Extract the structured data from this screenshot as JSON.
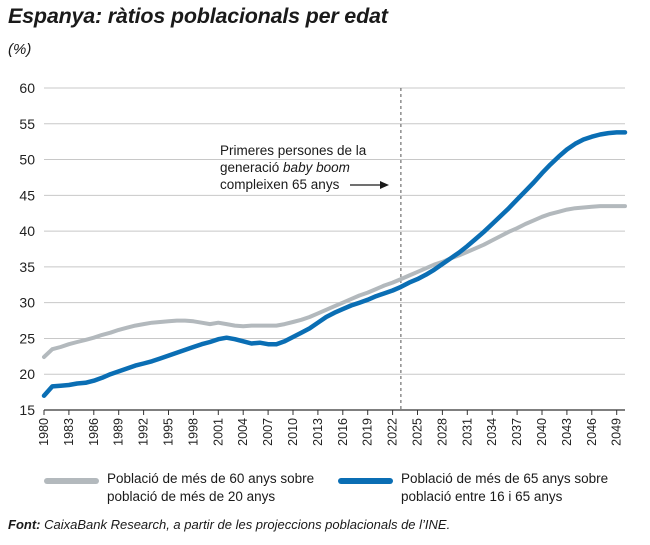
{
  "title": "Espanya: ràtios poblacionals per edat",
  "unit": "(%)",
  "annotation": {
    "line1": "Primeres persones de la",
    "line2_pre": "generació ",
    "line2_italic": "baby boom",
    "line3": "compleixen 65 anys",
    "marker_year": 2023
  },
  "legend": [
    {
      "line1": "Població de més de 60 anys sobre",
      "line2": "població de més de 20 anys",
      "color": "#b3b9bd"
    },
    {
      "line1": "Població de més de 65 anys sobre",
      "line2": "població entre 16 i 65 anys",
      "color": "#0a6eb4"
    }
  ],
  "source": {
    "label": "Font:",
    "text": " CaixaBank Research, a partir de les projeccions poblacionals de l’INE."
  },
  "chart_data": {
    "type": "line",
    "y_ticks": [
      15,
      20,
      25,
      30,
      35,
      40,
      45,
      50,
      55,
      60
    ],
    "ylim": [
      15,
      60
    ],
    "x_ticks": [
      1980,
      1983,
      1986,
      1989,
      1992,
      1995,
      1998,
      2001,
      2004,
      2007,
      2010,
      2013,
      2016,
      2019,
      2022,
      2025,
      2028,
      2031,
      2034,
      2037,
      2040,
      2043,
      2046,
      2049
    ],
    "xlim": [
      1980,
      2050
    ],
    "grid": true,
    "legend_position": "bottom",
    "series": [
      {
        "name": "Població de més de 60 anys sobre població de més de 20 anys",
        "color": "#b3b9bd",
        "x": [
          1980,
          1981,
          1982,
          1983,
          1984,
          1985,
          1986,
          1987,
          1988,
          1989,
          1990,
          1991,
          1992,
          1993,
          1994,
          1995,
          1996,
          1997,
          1998,
          1999,
          2000,
          2001,
          2002,
          2003,
          2004,
          2005,
          2006,
          2007,
          2008,
          2009,
          2010,
          2011,
          2012,
          2013,
          2014,
          2015,
          2016,
          2017,
          2018,
          2019,
          2020,
          2021,
          2022,
          2023,
          2024,
          2025,
          2026,
          2027,
          2028,
          2029,
          2030,
          2031,
          2032,
          2033,
          2034,
          2035,
          2036,
          2037,
          2038,
          2039,
          2040,
          2041,
          2042,
          2043,
          2044,
          2045,
          2046,
          2047,
          2048,
          2049,
          2050
        ],
        "values": [
          22.4,
          23.5,
          23.8,
          24.2,
          24.5,
          24.8,
          25.1,
          25.5,
          25.8,
          26.2,
          26.5,
          26.8,
          27.0,
          27.2,
          27.3,
          27.4,
          27.5,
          27.5,
          27.4,
          27.2,
          27.0,
          27.2,
          27.0,
          26.8,
          26.7,
          26.8,
          26.8,
          26.8,
          26.8,
          27.0,
          27.3,
          27.6,
          28.0,
          28.5,
          29.0,
          29.5,
          30.0,
          30.5,
          31.0,
          31.4,
          31.9,
          32.4,
          32.8,
          33.3,
          33.8,
          34.3,
          34.8,
          35.3,
          35.7,
          36.2,
          36.6,
          37.1,
          37.6,
          38.1,
          38.7,
          39.3,
          39.9,
          40.4,
          41.0,
          41.5,
          42.0,
          42.4,
          42.7,
          43.0,
          43.2,
          43.3,
          43.4,
          43.5,
          43.5,
          43.5,
          43.5
        ]
      },
      {
        "name": "Població de més de 65 anys sobre població entre 16 i 65 anys",
        "color": "#0a6eb4",
        "x": [
          1980,
          1981,
          1982,
          1983,
          1984,
          1985,
          1986,
          1987,
          1988,
          1989,
          1990,
          1991,
          1992,
          1993,
          1994,
          1995,
          1996,
          1997,
          1998,
          1999,
          2000,
          2001,
          2002,
          2003,
          2004,
          2005,
          2006,
          2007,
          2008,
          2009,
          2010,
          2011,
          2012,
          2013,
          2014,
          2015,
          2016,
          2017,
          2018,
          2019,
          2020,
          2021,
          2022,
          2023,
          2024,
          2025,
          2026,
          2027,
          2028,
          2029,
          2030,
          2031,
          2032,
          2033,
          2034,
          2035,
          2036,
          2037,
          2038,
          2039,
          2040,
          2041,
          2042,
          2043,
          2044,
          2045,
          2046,
          2047,
          2048,
          2049,
          2050
        ],
        "values": [
          17.0,
          18.3,
          18.4,
          18.5,
          18.7,
          18.8,
          19.1,
          19.5,
          20.0,
          20.4,
          20.8,
          21.2,
          21.5,
          21.8,
          22.2,
          22.6,
          23.0,
          23.4,
          23.8,
          24.2,
          24.5,
          24.9,
          25.1,
          24.9,
          24.6,
          24.3,
          24.4,
          24.2,
          24.2,
          24.6,
          25.2,
          25.8,
          26.4,
          27.2,
          28.0,
          28.6,
          29.1,
          29.6,
          30.0,
          30.4,
          30.9,
          31.3,
          31.7,
          32.2,
          32.8,
          33.3,
          33.9,
          34.6,
          35.4,
          36.2,
          37.0,
          37.9,
          38.9,
          39.9,
          41.0,
          42.1,
          43.2,
          44.4,
          45.6,
          46.8,
          48.1,
          49.3,
          50.4,
          51.4,
          52.2,
          52.8,
          53.2,
          53.5,
          53.7,
          53.8,
          53.8
        ]
      }
    ]
  }
}
